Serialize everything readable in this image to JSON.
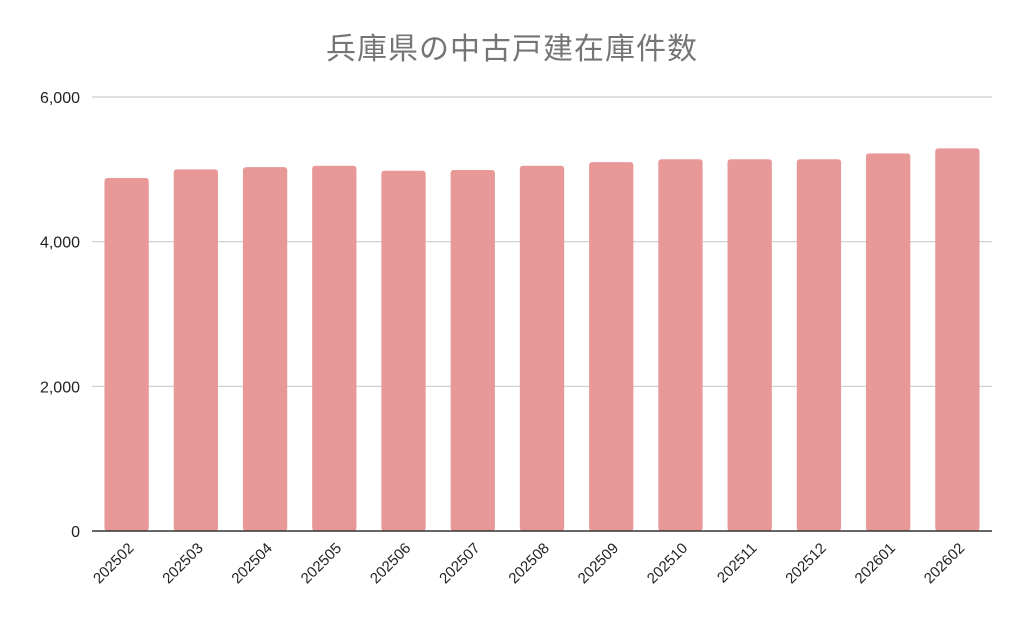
{
  "chart_data": {
    "type": "bar",
    "title": "兵庫県の中古戸建在庫件数",
    "xlabel": "",
    "ylabel": "",
    "categories": [
      "202502",
      "202503",
      "202504",
      "202505",
      "202506",
      "202507",
      "202508",
      "202509",
      "202510",
      "202511",
      "202512",
      "202601",
      "202602"
    ],
    "values": [
      4880,
      5000,
      5030,
      5050,
      4980,
      4990,
      5050,
      5100,
      5140,
      5140,
      5140,
      5220,
      5290
    ],
    "ylim": [
      0,
      6000
    ],
    "yticks": [
      0,
      2000,
      4000,
      6000
    ],
    "ytick_labels": [
      "0",
      "2,000",
      "4,000",
      "6,000"
    ],
    "grid": true,
    "legend": "none",
    "bar_color": "#e99898",
    "grid_color": "#cccccc",
    "axis_color": "#333333",
    "title_color": "#757575"
  }
}
